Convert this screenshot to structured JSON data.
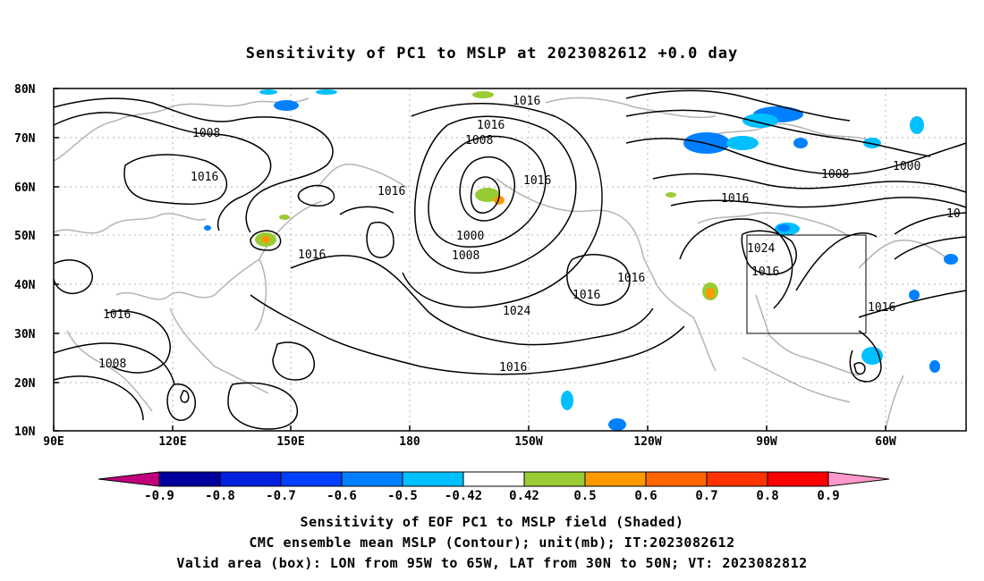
{
  "title": "Sensitivity of PC1 to MSLP at 2023082612 +0.0 day",
  "lat_labels": [
    "80N",
    "70N",
    "60N",
    "50N",
    "40N",
    "30N",
    "20N",
    "10N"
  ],
  "lon_labels": [
    "90E",
    "120E",
    "150E",
    "180",
    "150W",
    "120W",
    "90W",
    "60W"
  ],
  "contour_labels": [
    "1016",
    "1016",
    "1008",
    "1008",
    "1016",
    "1016",
    "1016",
    "1016",
    "1000",
    "1008",
    "1016",
    "1016",
    "1024",
    "1016",
    "1016",
    "1008",
    "1000",
    "1016",
    "1024",
    "1016",
    "1016",
    "1008",
    "1000",
    "1016",
    "10"
  ],
  "colorbar": {
    "labels": [
      "-0.9",
      "-0.8",
      "-0.7",
      "-0.6",
      "-0.5",
      "-0.42",
      "0.42",
      "0.5",
      "0.6",
      "0.7",
      "0.8",
      "0.9"
    ],
    "colors": [
      "#c0007c",
      "#00009c",
      "#0020e0",
      "#0040ff",
      "#0080ff",
      "#00c0ff",
      "#ffffff",
      "#99cc33",
      "#ff9900",
      "#ff6600",
      "#ff3300",
      "#ff0000",
      "#ff99cc"
    ]
  },
  "valid_area": {
    "lon_from": "95W",
    "lon_to": "65W",
    "lat_from": "30N",
    "lat_to": "50N"
  },
  "captions": [
    "Sensitivity of EOF PC1 to MSLP field (Shaded)",
    "CMC ensemble mean MSLP (Contour); unit(mb); IT:2023082612",
    "Valid area (box): LON from 95W to 65W, LAT from 30N to 50N; VT: 2023082812"
  ]
}
